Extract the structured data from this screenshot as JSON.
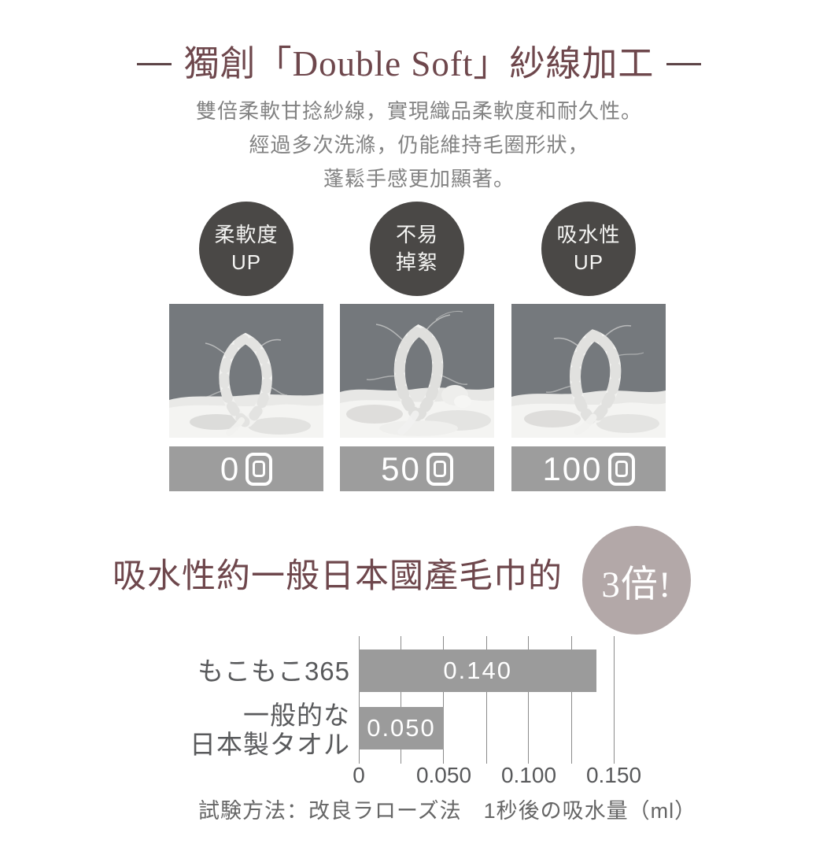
{
  "title_section": {
    "title": "獨創「Double Soft」紗線加工",
    "title_color": "#6e474c",
    "subtitle_lines": [
      "雙倍柔軟甘捻紗線，實現織品柔軟度和耐久性。",
      "經過多次洗滌，仍能維持毛圈形狀，",
      "蓬鬆手感更加顯著。"
    ]
  },
  "feature_badges": [
    {
      "line1": "柔軟度",
      "line2": "UP",
      "bg": "#4a4846"
    },
    {
      "line1": "不易",
      "line2": "掉絮",
      "bg": "#4a4846"
    },
    {
      "line1": "吸水性",
      "line2": "UP",
      "bg": "#4a4846"
    }
  ],
  "wash_tests": [
    {
      "count": "0",
      "unit": "回",
      "label": "0回"
    },
    {
      "count": "50",
      "unit": "回",
      "label": "50回"
    },
    {
      "count": "100",
      "unit": "回",
      "label": "100回"
    }
  ],
  "absorbency": {
    "headline": "吸水性約一般日本國產毛巾的",
    "highlight": "3倍!",
    "highlight_bg": "#b3a8a8"
  },
  "chart_data": {
    "type": "bar",
    "orientation": "horizontal",
    "categories": [
      "もこもこ365",
      "一般的な日本製タオル"
    ],
    "category_lines": [
      [
        "もこもこ365"
      ],
      [
        "一般的な",
        "日本製タオル"
      ]
    ],
    "values": [
      0.14,
      0.05
    ],
    "value_labels": [
      "0.140",
      "0.050"
    ],
    "xlim": [
      0,
      0.15
    ],
    "x_ticks": [
      0,
      0.05,
      0.1,
      0.15
    ],
    "x_tick_labels": [
      "0",
      "0.050",
      "0.100",
      "0.150"
    ],
    "gridline_step": 0.025,
    "grid": true,
    "bar_color": "#9b9b9b",
    "note": "試験方法：改良ラローズ法　1秒後の吸水量（ml）"
  },
  "colors": {
    "accent_maroon": "#6e474c",
    "badge_gray": "#4a4846",
    "washbar_gray": "#9d9d9d",
    "highlight_mauve": "#b3a8a8",
    "bar_gray": "#9b9b9b",
    "text_gray": "#828282"
  }
}
